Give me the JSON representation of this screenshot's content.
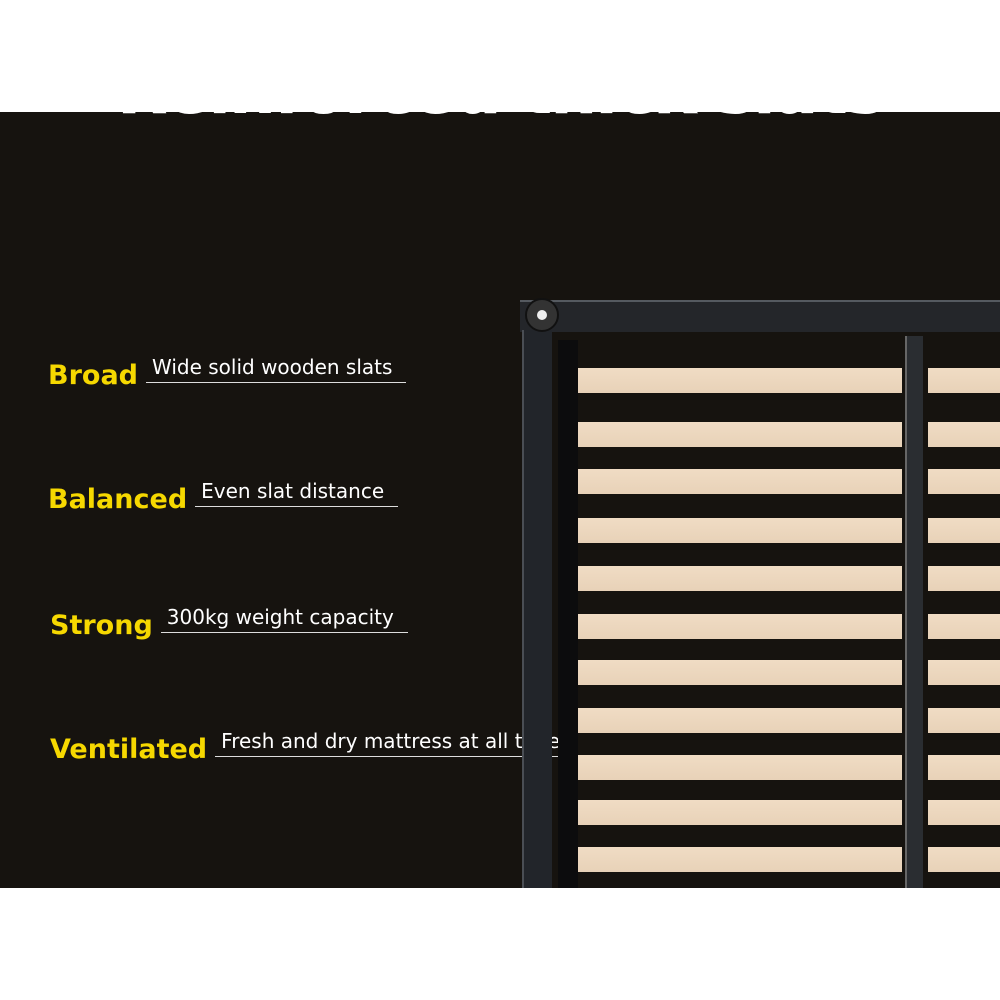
{
  "title": "Reinforced thick slats",
  "features": [
    {
      "key": "Broad",
      "value": "Wide solid wooden slats"
    },
    {
      "key": "Balanced",
      "value": "Even slat distance"
    },
    {
      "key": "Strong",
      "value": "300kg weight capacity"
    },
    {
      "key": "Ventilated",
      "value": "Fresh and dry mattress at all times"
    }
  ],
  "colors": {
    "accent": "#f6d800",
    "background": "#16130f",
    "slat": "#ecd7bd"
  }
}
